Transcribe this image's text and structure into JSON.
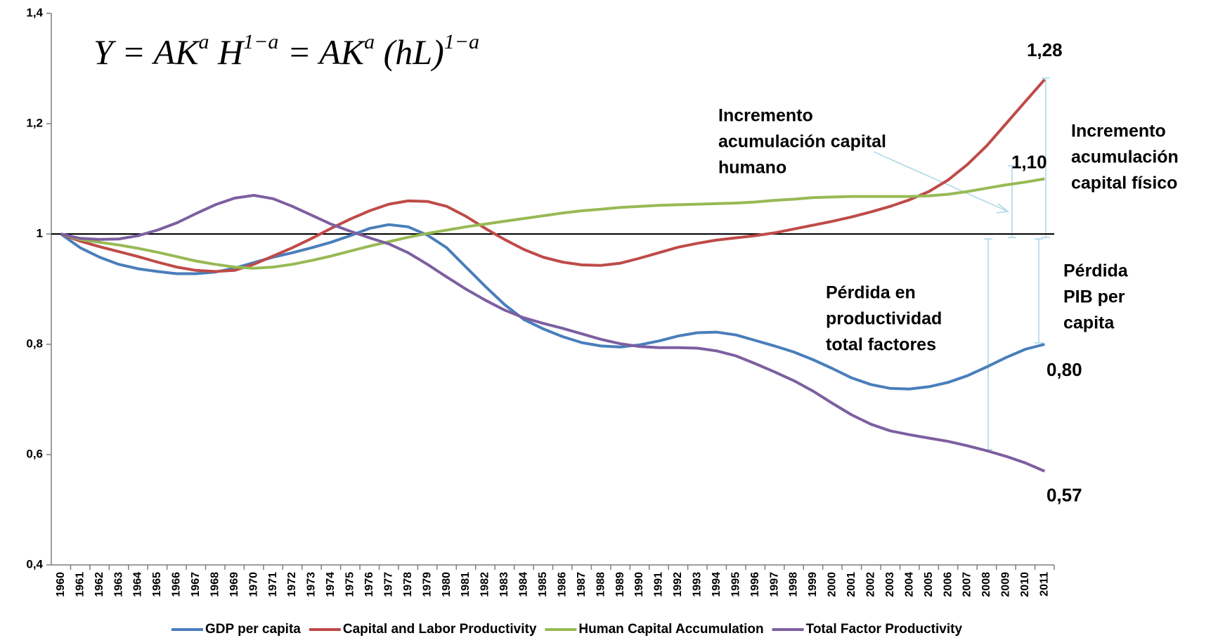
{
  "chart_data": {
    "type": "line",
    "formula": [
      "Y = AK",
      "a",
      " H",
      "1−a",
      " = AK",
      "a",
      " (hL)",
      "1−a"
    ],
    "categories": [
      "1960",
      "1961",
      "1962",
      "1963",
      "1964",
      "1965",
      "1966",
      "1967",
      "1968",
      "1969",
      "1970",
      "1971",
      "1972",
      "1973",
      "1974",
      "1975",
      "1976",
      "1977",
      "1978",
      "1979",
      "1980",
      "1981",
      "1982",
      "1983",
      "1984",
      "1985",
      "1986",
      "1987",
      "1988",
      "1989",
      "1990",
      "1991",
      "1992",
      "1993",
      "1994",
      "1995",
      "1996",
      "1997",
      "1998",
      "1999",
      "2000",
      "2001",
      "2002",
      "2003",
      "2004",
      "2005",
      "2006",
      "2007",
      "2008",
      "2009",
      "2010",
      "2011"
    ],
    "series": [
      {
        "name": "GDP per capita",
        "color": "#4a7ebb",
        "values": [
          1.0,
          0.975,
          0.958,
          0.945,
          0.937,
          0.932,
          0.928,
          0.928,
          0.931,
          0.938,
          0.948,
          0.958,
          0.966,
          0.975,
          0.985,
          0.997,
          1.01,
          1.017,
          1.013,
          0.998,
          0.975,
          0.94,
          0.905,
          0.872,
          0.845,
          0.828,
          0.814,
          0.803,
          0.797,
          0.795,
          0.799,
          0.806,
          0.815,
          0.821,
          0.822,
          0.817,
          0.807,
          0.797,
          0.786,
          0.772,
          0.756,
          0.739,
          0.727,
          0.72,
          0.719,
          0.723,
          0.731,
          0.743,
          0.759,
          0.776,
          0.791,
          0.8
        ],
        "value_labels": [
          null,
          null,
          null,
          null,
          null,
          null,
          null,
          null,
          null,
          null,
          null,
          null,
          null,
          null,
          null,
          null,
          null,
          null,
          null,
          null,
          null,
          null,
          null,
          null,
          null,
          null,
          null,
          null,
          null,
          null,
          null,
          null,
          null,
          null,
          null,
          null,
          null,
          null,
          null,
          null,
          null,
          null,
          null,
          null,
          null,
          null,
          null,
          null,
          null,
          null,
          null,
          "0,80"
        ]
      },
      {
        "name": "Capital and Labor Productivity",
        "color": "#be4b48",
        "values": [
          1.0,
          0.987,
          0.977,
          0.968,
          0.959,
          0.949,
          0.94,
          0.934,
          0.932,
          0.934,
          0.945,
          0.96,
          0.975,
          0.992,
          1.01,
          1.027,
          1.042,
          1.054,
          1.06,
          1.059,
          1.05,
          1.032,
          1.01,
          0.99,
          0.972,
          0.958,
          0.949,
          0.944,
          0.943,
          0.947,
          0.956,
          0.966,
          0.976,
          0.983,
          0.989,
          0.993,
          0.997,
          1.002,
          1.009,
          1.016,
          1.023,
          1.031,
          1.04,
          1.05,
          1.062,
          1.077,
          1.098,
          1.126,
          1.16,
          1.2,
          1.24,
          1.28
        ],
        "value_labels": [
          null,
          null,
          null,
          null,
          null,
          null,
          null,
          null,
          null,
          null,
          null,
          null,
          null,
          null,
          null,
          null,
          null,
          null,
          null,
          null,
          null,
          null,
          null,
          null,
          null,
          null,
          null,
          null,
          null,
          null,
          null,
          null,
          null,
          null,
          null,
          null,
          null,
          null,
          null,
          null,
          null,
          null,
          null,
          null,
          null,
          null,
          null,
          null,
          null,
          null,
          null,
          "1,28"
        ]
      },
      {
        "name": "Human Capital Accumulation",
        "color": "#98b954",
        "values": [
          1.0,
          0.99,
          0.985,
          0.98,
          0.974,
          0.967,
          0.959,
          0.951,
          0.945,
          0.94,
          0.938,
          0.94,
          0.945,
          0.952,
          0.96,
          0.969,
          0.978,
          0.986,
          0.994,
          1.001,
          1.007,
          1.013,
          1.018,
          1.023,
          1.028,
          1.033,
          1.038,
          1.042,
          1.045,
          1.048,
          1.05,
          1.052,
          1.053,
          1.054,
          1.055,
          1.056,
          1.058,
          1.061,
          1.063,
          1.066,
          1.067,
          1.068,
          1.068,
          1.068,
          1.068,
          1.069,
          1.072,
          1.077,
          1.083,
          1.089,
          1.094,
          1.1
        ],
        "value_labels": [
          null,
          null,
          null,
          null,
          null,
          null,
          null,
          null,
          null,
          null,
          null,
          null,
          null,
          null,
          null,
          null,
          null,
          null,
          null,
          null,
          null,
          null,
          null,
          null,
          null,
          null,
          null,
          null,
          null,
          null,
          null,
          null,
          null,
          null,
          null,
          null,
          null,
          null,
          null,
          null,
          null,
          null,
          null,
          null,
          null,
          null,
          null,
          null,
          null,
          null,
          null,
          "1,10"
        ]
      },
      {
        "name": "Total Factor Productivity",
        "color": "#7d5fa0",
        "values": [
          1.0,
          0.992,
          0.99,
          0.991,
          0.997,
          1.007,
          1.02,
          1.037,
          1.053,
          1.065,
          1.07,
          1.064,
          1.05,
          1.034,
          1.018,
          1.005,
          0.993,
          0.982,
          0.966,
          0.945,
          0.922,
          0.9,
          0.88,
          0.862,
          0.848,
          0.838,
          0.829,
          0.819,
          0.809,
          0.801,
          0.796,
          0.794,
          0.794,
          0.793,
          0.788,
          0.779,
          0.765,
          0.75,
          0.734,
          0.715,
          0.693,
          0.672,
          0.655,
          0.643,
          0.636,
          0.63,
          0.624,
          0.616,
          0.607,
          0.597,
          0.585,
          0.57
        ],
        "value_labels": [
          null,
          null,
          null,
          null,
          null,
          null,
          null,
          null,
          null,
          null,
          null,
          null,
          null,
          null,
          null,
          null,
          null,
          null,
          null,
          null,
          null,
          null,
          null,
          null,
          null,
          null,
          null,
          null,
          null,
          null,
          null,
          null,
          null,
          null,
          null,
          null,
          null,
          null,
          null,
          null,
          null,
          null,
          null,
          null,
          null,
          null,
          null,
          null,
          null,
          null,
          null,
          "0,57"
        ]
      }
    ],
    "ylim": [
      0.4,
      1.4
    ],
    "yticks": [
      {
        "value": 0.4,
        "label": "0,4"
      },
      {
        "value": 0.6,
        "label": "0,6"
      },
      {
        "value": 0.8,
        "label": "0,8"
      },
      1,
      {
        "value": 1.2,
        "label": "1,2"
      },
      {
        "value": 1.4,
        "label": "1,4"
      }
    ],
    "reference_line": 1,
    "legend": "bottom",
    "annotations": [
      [
        "Incremento",
        "acumulación capital",
        "humano"
      ],
      [
        "Incremento",
        "acumulación",
        "capital físico"
      ],
      [
        "Pérdida en",
        "productividad",
        "total factores"
      ],
      [
        "Pérdida",
        "PIB per",
        "capita"
      ]
    ]
  }
}
